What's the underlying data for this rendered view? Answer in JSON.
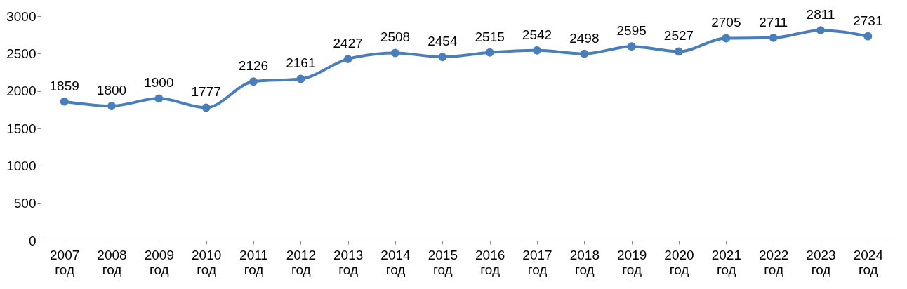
{
  "chart_data": {
    "type": "line",
    "categories": [
      "2007 год",
      "2008 год",
      "2009 год",
      "2010 год",
      "2011 год",
      "2012 год",
      "2013 год",
      "2014 год",
      "2015 год",
      "2016 год",
      "2017 год",
      "2018 год",
      "2019 год",
      "2020 год",
      "2021 год",
      "2022 год",
      "2023 год",
      "2024 год"
    ],
    "series": [
      {
        "color": "#4a7ebb",
        "values": [
          1859,
          1800,
          1900,
          1777,
          2126,
          2161,
          2427,
          2508,
          2454,
          2515,
          2542,
          2498,
          2595,
          2527,
          2705,
          2711,
          2811,
          2731
        ]
      }
    ],
    "ylim": [
      0,
      3000
    ],
    "yticks": [
      0,
      500,
      1000,
      1500,
      2000,
      2500,
      3000
    ],
    "grid": false,
    "marker": "circle",
    "line_style": "solid",
    "data_labels": true
  }
}
